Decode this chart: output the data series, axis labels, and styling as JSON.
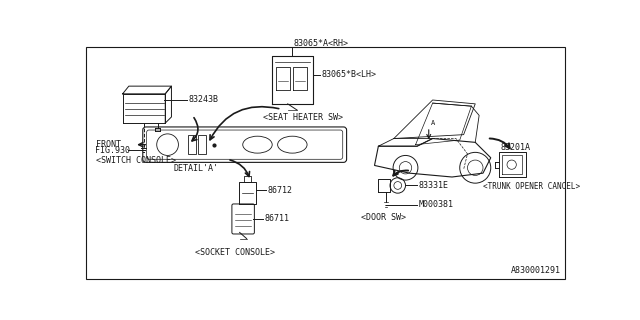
{
  "bg_color": "#ffffff",
  "line_color": "#1a1a1a",
  "text_color": "#1a1a1a",
  "diagram_id": "A830001291",
  "font_size": 6.0,
  "border": [
    0.012,
    0.025,
    0.978,
    0.965
  ]
}
